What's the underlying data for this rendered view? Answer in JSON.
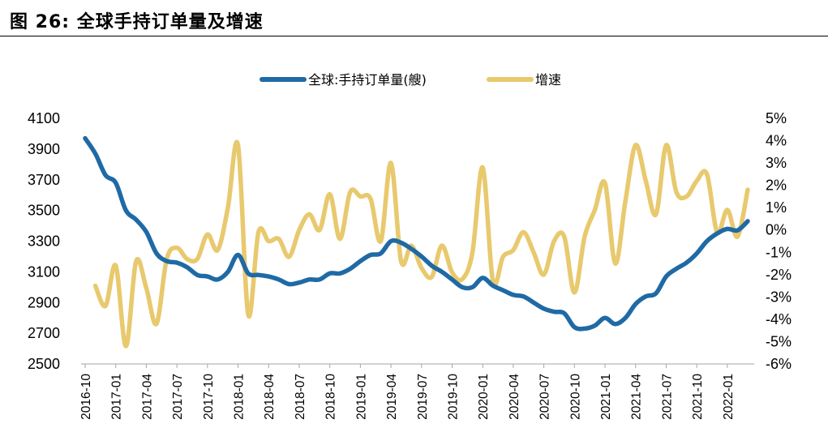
{
  "figure": {
    "title": "图  26:  全球手持订单量及增速"
  },
  "chart_data": {
    "type": "line",
    "xlabel": "",
    "x": [
      "2016-10",
      "2016-11",
      "2016-12",
      "2017-01",
      "2017-02",
      "2017-03",
      "2017-04",
      "2017-05",
      "2017-06",
      "2017-07",
      "2017-08",
      "2017-09",
      "2017-10",
      "2017-11",
      "2017-12",
      "2018-01",
      "2018-02",
      "2018-03",
      "2018-04",
      "2018-05",
      "2018-06",
      "2018-07",
      "2018-08",
      "2018-09",
      "2018-10",
      "2018-11",
      "2018-12",
      "2019-01",
      "2019-02",
      "2019-03",
      "2019-04",
      "2019-05",
      "2019-06",
      "2019-07",
      "2019-08",
      "2019-09",
      "2019-10",
      "2019-11",
      "2019-12",
      "2020-01",
      "2020-02",
      "2020-03",
      "2020-04",
      "2020-05",
      "2020-06",
      "2020-07",
      "2020-08",
      "2020-09",
      "2020-10",
      "2020-11",
      "2020-12",
      "2021-01",
      "2021-02",
      "2021-03",
      "2021-04",
      "2021-05",
      "2021-06",
      "2021-07",
      "2021-08",
      "2021-09",
      "2021-10",
      "2021-11",
      "2021-12",
      "2022-01",
      "2022-02",
      "2022-03"
    ],
    "xticks": [
      "2016-10",
      "2017-01",
      "2017-04",
      "2017-07",
      "2017-10",
      "2018-01",
      "2018-04",
      "2018-07",
      "2018-10",
      "2019-01",
      "2019-04",
      "2019-07",
      "2019-10",
      "2020-01",
      "2020-04",
      "2020-07",
      "2020-10",
      "2021-01",
      "2021-04",
      "2021-07",
      "2021-10",
      "2022-01"
    ],
    "y_left": {
      "ylim": [
        2500,
        4100
      ],
      "ticks": [
        "2500",
        "2700",
        "2900",
        "3100",
        "3300",
        "3500",
        "3700",
        "3900",
        "4100"
      ]
    },
    "y_right": {
      "ylim": [
        -6,
        5
      ],
      "ticks": [
        "-6%",
        "-5%",
        "-4%",
        "-3%",
        "-2%",
        "-1%",
        "0%",
        "1%",
        "2%",
        "3%",
        "4%",
        "5%"
      ]
    },
    "legend_position": "top-center",
    "grid": false,
    "series": [
      {
        "name": "全球:手持订单量(艘)",
        "axis": "left",
        "color": "#1F6AA5",
        "values": [
          3970,
          3870,
          3730,
          3680,
          3500,
          3440,
          3360,
          3220,
          3170,
          3160,
          3130,
          3080,
          3070,
          3050,
          3100,
          3210,
          3090,
          3080,
          3070,
          3050,
          3020,
          3030,
          3050,
          3050,
          3090,
          3090,
          3120,
          3170,
          3210,
          3220,
          3300,
          3290,
          3250,
          3200,
          3140,
          3100,
          3050,
          3000,
          3000,
          3060,
          3010,
          2980,
          2950,
          2940,
          2900,
          2860,
          2840,
          2830,
          2740,
          2730,
          2750,
          2800,
          2760,
          2800,
          2890,
          2940,
          2960,
          3070,
          3120,
          3160,
          3220,
          3300,
          3350,
          3380,
          3370,
          3430
        ]
      },
      {
        "name": "增速",
        "axis": "right",
        "color": "#E8C96E",
        "values": [
          null,
          -2.5,
          -3.4,
          -1.6,
          -5.2,
          -1.4,
          -2.6,
          -4.2,
          -1.3,
          -0.8,
          -1.3,
          -1.3,
          -0.2,
          -0.9,
          1.0,
          3.8,
          -3.8,
          -0.1,
          -0.5,
          -0.4,
          -1.2,
          0.0,
          0.7,
          0.0,
          1.6,
          -0.4,
          1.7,
          1.5,
          1.4,
          -0.5,
          3.0,
          -1.4,
          -0.7,
          -1.7,
          -2.1,
          -0.7,
          -1.9,
          -2.2,
          -1.0,
          2.8,
          -2.3,
          -1.2,
          -0.9,
          -0.1,
          -1.0,
          -2.0,
          -0.5,
          -0.3,
          -2.8,
          -0.3,
          0.9,
          2.1,
          -1.5,
          1.3,
          3.8,
          2.2,
          0.7,
          3.8,
          1.7,
          1.5,
          2.2,
          2.5,
          -0.1,
          0.9,
          -0.3,
          1.8
        ]
      }
    ]
  }
}
